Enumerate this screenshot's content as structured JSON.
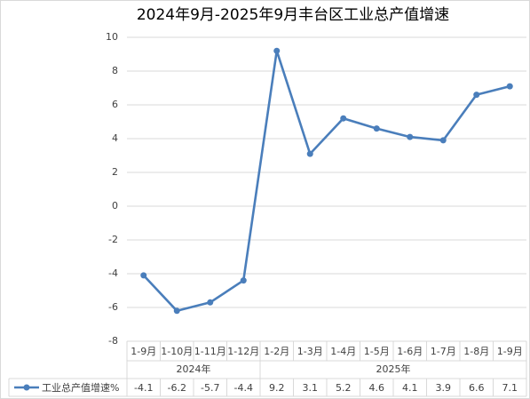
{
  "chart_data": {
    "type": "line",
    "title": "2024年9月-2025年9月丰台区工业总产值增速",
    "categories": [
      "1-9月",
      "1-10月",
      "1-11月",
      "1-12月",
      "1-2月",
      "1-3月",
      "1-4月",
      "1-5月",
      "1-6月",
      "1-7月",
      "1-8月",
      "1-9月"
    ],
    "category_groups": [
      {
        "name": "2024年",
        "size": 4
      },
      {
        "name": "2025年",
        "size": 8
      }
    ],
    "series": [
      {
        "name": "工业总产值增速%",
        "color": "#4a7ebb",
        "values": [
          -4.1,
          -6.2,
          -5.7,
          -4.4,
          9.2,
          3.1,
          5.2,
          4.6,
          4.1,
          3.9,
          6.6,
          7.1
        ]
      }
    ],
    "ylim": [
      -8,
      10
    ],
    "yticks": [
      -8,
      -6,
      -4,
      -2,
      0,
      2,
      4,
      6,
      8,
      10
    ],
    "grid": true,
    "data_table": true
  }
}
